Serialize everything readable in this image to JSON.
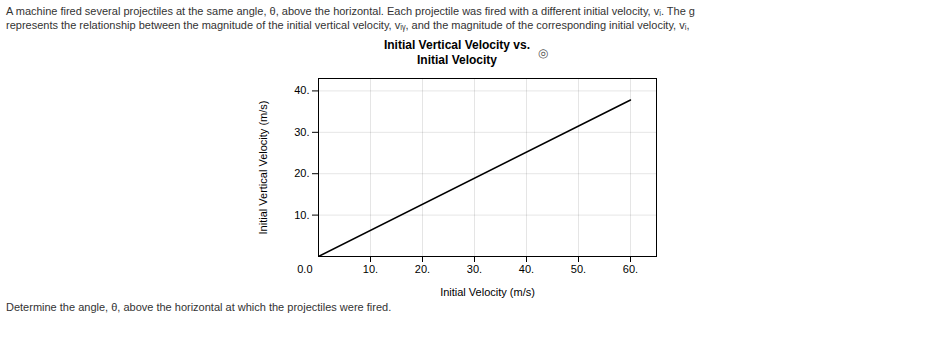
{
  "chart_data": {
    "type": "line",
    "title": "Initial Vertical Velocity vs.\nInitial Velocity",
    "subtitle": [
      "A machine fired several projectiles at the same angle, θ, above the horizontal. Each projectile was fired with a different initial velocity, vᵢ. The g",
      "represents the relationship between the magnitude of the initial vertical velocity, vᵢᵧ, and the magnitude of the corresponding initial velocity, vᵢ,"
    ],
    "caption": "Determine the angle, θ, above the horizontal at which the projectiles were fired.",
    "xlabel": "Initial Velocity (m/s)",
    "ylabel": "Initial Vertical Velocity (m/s)",
    "x": [
      0,
      60
    ],
    "values": [
      0,
      37.8
    ],
    "color": "#000000",
    "xlim": [
      0,
      65
    ],
    "ylim": [
      0.0,
      43
    ],
    "xticks": [
      {
        "value": 10,
        "label": "10."
      },
      {
        "value": 20,
        "label": "20."
      },
      {
        "value": 30,
        "label": "30."
      },
      {
        "value": 40,
        "label": "40."
      },
      {
        "value": 50,
        "label": "50."
      },
      {
        "value": 60,
        "label": "60."
      }
    ],
    "yticks": [
      {
        "value": 10,
        "label": "10."
      },
      {
        "value": 20,
        "label": "20."
      },
      {
        "value": 30,
        "label": "30."
      },
      {
        "value": 40,
        "label": "40."
      }
    ],
    "grid": true,
    "annotations": [
      {
        "text": "0.0",
        "x": 0,
        "y": 0
      },
      {
        "text": "◎"
      }
    ]
  }
}
